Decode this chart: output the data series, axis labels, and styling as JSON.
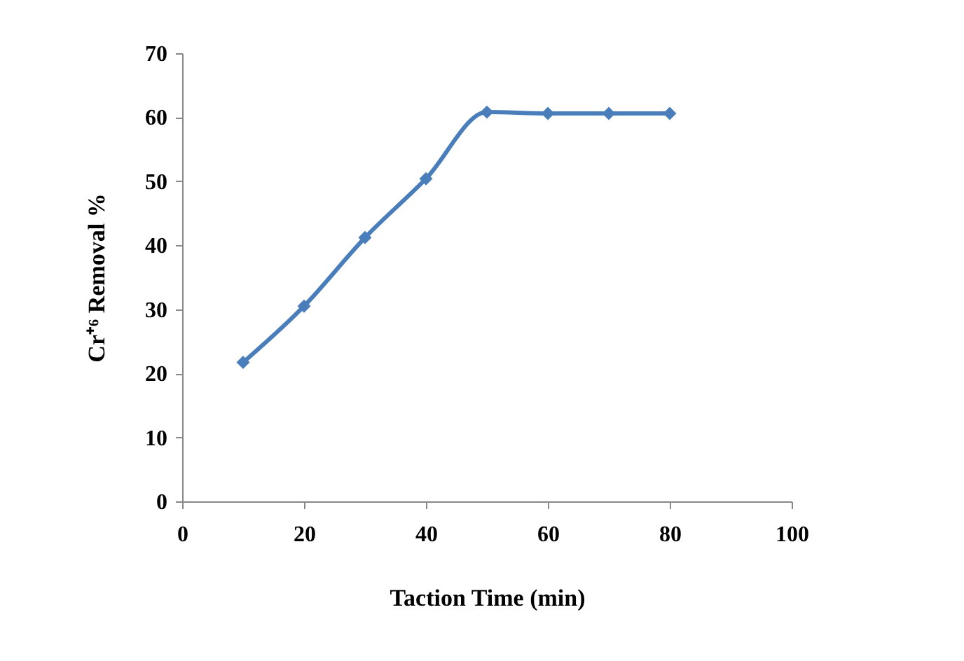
{
  "chart_data": {
    "type": "line",
    "xlabel": "Taction Time (min)",
    "ylabel": "Cr⁺⁶ Removal %",
    "x": [
      10,
      20,
      30,
      40,
      50,
      60,
      70,
      80
    ],
    "series": [
      {
        "color": "#4a7ebb",
        "values": [
          21.7,
          30.5,
          41.2,
          50.4,
          60.8,
          60.6,
          60.6,
          60.6
        ]
      }
    ],
    "xlim": [
      0,
      100
    ],
    "xticks": [
      0,
      20,
      40,
      60,
      80,
      100
    ],
    "ylim": [
      0,
      70
    ],
    "yticks": [
      0,
      10,
      20,
      30,
      40,
      50,
      60,
      70
    ],
    "grid": false,
    "marker": "diamond",
    "line_style": "solid"
  }
}
